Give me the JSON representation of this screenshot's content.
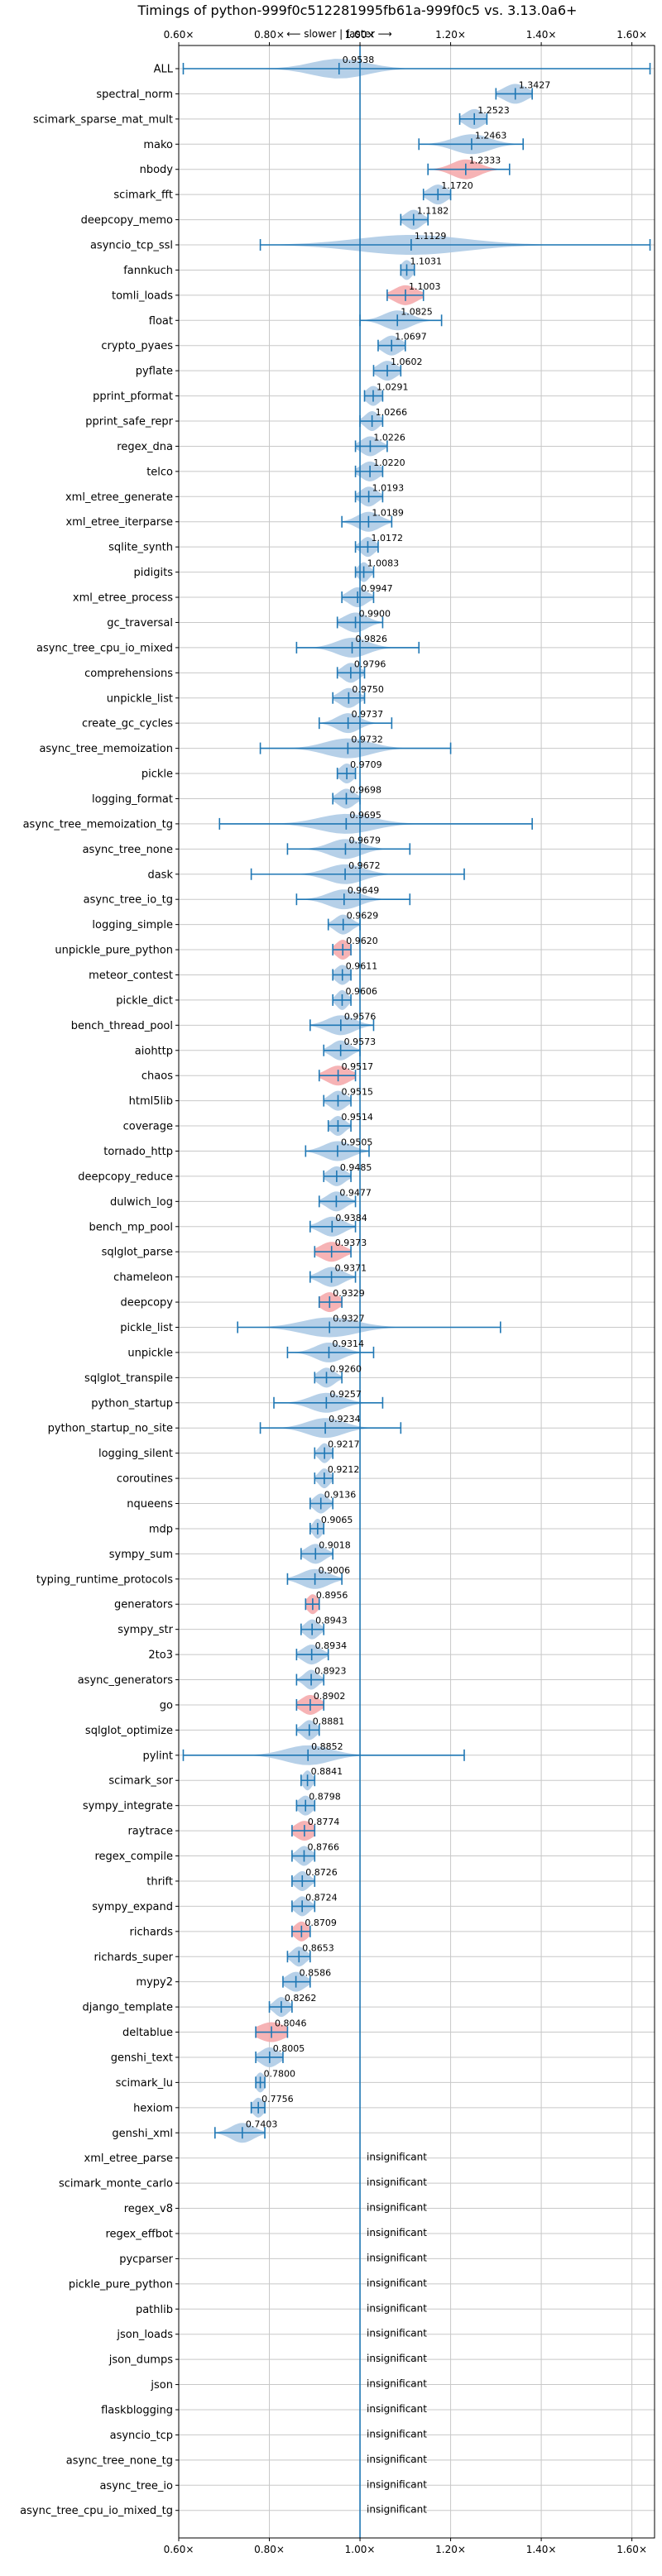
{
  "chart_data": {
    "type": "violin",
    "title": "Timings of python-999f0c512281995fb61a-999f0c5 vs. 3.13.0a6+",
    "direction_label": "⟵ slower | faster ⟶",
    "xlim": [
      0.6,
      1.65
    ],
    "x_ticks": [
      0.6,
      0.8,
      1.0,
      1.2,
      1.4,
      1.6
    ],
    "x_tick_labels": [
      "0.60×",
      "0.80×",
      "1.00×",
      "1.20×",
      "1.40×",
      "1.60×"
    ],
    "reference_line": 1.0,
    "grid": true,
    "insignificant_label": "insignificant",
    "benchmarks": [
      {
        "name": "ALL",
        "value": 0.9538,
        "label": "0.9538",
        "low": 0.61,
        "high": 1.64,
        "spread": 0.06,
        "regression": false
      },
      {
        "name": "spectral_norm",
        "value": 1.3427,
        "label": "1.3427",
        "low": 1.3,
        "high": 1.38,
        "spread": 0.025,
        "regression": false
      },
      {
        "name": "scimark_sparse_mat_mult",
        "value": 1.2523,
        "label": "1.2523",
        "low": 1.22,
        "high": 1.28,
        "spread": 0.02,
        "regression": false
      },
      {
        "name": "mako",
        "value": 1.2463,
        "label": "1.2463",
        "low": 1.13,
        "high": 1.36,
        "spread": 0.04,
        "regression": false
      },
      {
        "name": "nbody",
        "value": 1.2333,
        "label": "1.2333",
        "low": 1.15,
        "high": 1.33,
        "spread": 0.03,
        "regression": true
      },
      {
        "name": "scimark_fft",
        "value": 1.172,
        "label": "1.1720",
        "low": 1.14,
        "high": 1.2,
        "spread": 0.02,
        "regression": false
      },
      {
        "name": "deepcopy_memo",
        "value": 1.1182,
        "label": "1.1182",
        "low": 1.09,
        "high": 1.15,
        "spread": 0.018,
        "regression": false
      },
      {
        "name": "asyncio_tcp_ssl",
        "value": 1.1129,
        "label": "1.1129",
        "low": 0.78,
        "high": 1.64,
        "spread": 0.12,
        "regression": false
      },
      {
        "name": "fannkuch",
        "value": 1.1031,
        "label": "1.1031",
        "low": 1.09,
        "high": 1.12,
        "spread": 0.012,
        "regression": false
      },
      {
        "name": "tomli_loads",
        "value": 1.1003,
        "label": "1.1003",
        "low": 1.06,
        "high": 1.14,
        "spread": 0.025,
        "regression": true
      },
      {
        "name": "float",
        "value": 1.0825,
        "label": "1.0825",
        "low": 1.0,
        "high": 1.18,
        "spread": 0.03,
        "regression": false
      },
      {
        "name": "crypto_pyaes",
        "value": 1.0697,
        "label": "1.0697",
        "low": 1.04,
        "high": 1.1,
        "spread": 0.02,
        "regression": false
      },
      {
        "name": "pyflate",
        "value": 1.0602,
        "label": "1.0602",
        "low": 1.03,
        "high": 1.09,
        "spread": 0.02,
        "regression": false
      },
      {
        "name": "pprint_pformat",
        "value": 1.0291,
        "label": "1.0291",
        "low": 1.01,
        "high": 1.05,
        "spread": 0.015,
        "regression": false
      },
      {
        "name": "pprint_safe_repr",
        "value": 1.0266,
        "label": "1.0266",
        "low": 1.0,
        "high": 1.05,
        "spread": 0.015,
        "regression": false
      },
      {
        "name": "regex_dna",
        "value": 1.0226,
        "label": "1.0226",
        "low": 0.99,
        "high": 1.06,
        "spread": 0.02,
        "regression": false
      },
      {
        "name": "telco",
        "value": 1.022,
        "label": "1.0220",
        "low": 0.99,
        "high": 1.05,
        "spread": 0.02,
        "regression": false
      },
      {
        "name": "xml_etree_generate",
        "value": 1.0193,
        "label": "1.0193",
        "low": 0.99,
        "high": 1.05,
        "spread": 0.018,
        "regression": false
      },
      {
        "name": "xml_etree_iterparse",
        "value": 1.0189,
        "label": "1.0189",
        "low": 0.96,
        "high": 1.07,
        "spread": 0.025,
        "regression": false
      },
      {
        "name": "sqlite_synth",
        "value": 1.0172,
        "label": "1.0172",
        "low": 0.99,
        "high": 1.04,
        "spread": 0.015,
        "regression": false
      },
      {
        "name": "pidigits",
        "value": 1.0083,
        "label": "1.0083",
        "low": 0.99,
        "high": 1.03,
        "spread": 0.012,
        "regression": false
      },
      {
        "name": "xml_etree_process",
        "value": 0.9947,
        "label": "0.9947",
        "low": 0.96,
        "high": 1.03,
        "spread": 0.02,
        "regression": false
      },
      {
        "name": "gc_traversal",
        "value": 0.99,
        "label": "0.9900",
        "low": 0.95,
        "high": 1.05,
        "spread": 0.025,
        "regression": false
      },
      {
        "name": "async_tree_cpu_io_mixed",
        "value": 0.9826,
        "label": "0.9826",
        "low": 0.86,
        "high": 1.13,
        "spread": 0.035,
        "regression": false
      },
      {
        "name": "comprehensions",
        "value": 0.9796,
        "label": "0.9796",
        "low": 0.95,
        "high": 1.01,
        "spread": 0.018,
        "regression": false
      },
      {
        "name": "unpickle_list",
        "value": 0.975,
        "label": "0.9750",
        "low": 0.94,
        "high": 1.01,
        "spread": 0.02,
        "regression": false
      },
      {
        "name": "create_gc_cycles",
        "value": 0.9737,
        "label": "0.9737",
        "low": 0.91,
        "high": 1.07,
        "spread": 0.025,
        "regression": false
      },
      {
        "name": "async_tree_memoization",
        "value": 0.9732,
        "label": "0.9732",
        "low": 0.78,
        "high": 1.2,
        "spread": 0.05,
        "regression": false
      },
      {
        "name": "pickle",
        "value": 0.9709,
        "label": "0.9709",
        "low": 0.95,
        "high": 0.99,
        "spread": 0.015,
        "regression": false
      },
      {
        "name": "logging_format",
        "value": 0.9698,
        "label": "0.9698",
        "low": 0.94,
        "high": 1.0,
        "spread": 0.018,
        "regression": false
      },
      {
        "name": "async_tree_memoization_tg",
        "value": 0.9695,
        "label": "0.9695",
        "low": 0.69,
        "high": 1.38,
        "spread": 0.06,
        "regression": false
      },
      {
        "name": "async_tree_none",
        "value": 0.9679,
        "label": "0.9679",
        "low": 0.84,
        "high": 1.11,
        "spread": 0.035,
        "regression": false
      },
      {
        "name": "dask",
        "value": 0.9672,
        "label": "0.9672",
        "low": 0.76,
        "high": 1.23,
        "spread": 0.04,
        "regression": false
      },
      {
        "name": "async_tree_io_tg",
        "value": 0.9649,
        "label": "0.9649",
        "low": 0.86,
        "high": 1.11,
        "spread": 0.035,
        "regression": false
      },
      {
        "name": "logging_simple",
        "value": 0.9629,
        "label": "0.9629",
        "low": 0.93,
        "high": 1.0,
        "spread": 0.018,
        "regression": false
      },
      {
        "name": "unpickle_pure_python",
        "value": 0.962,
        "label": "0.9620",
        "low": 0.94,
        "high": 0.98,
        "spread": 0.015,
        "regression": true
      },
      {
        "name": "meteor_contest",
        "value": 0.9611,
        "label": "0.9611",
        "low": 0.94,
        "high": 0.98,
        "spread": 0.015,
        "regression": false
      },
      {
        "name": "pickle_dict",
        "value": 0.9606,
        "label": "0.9606",
        "low": 0.94,
        "high": 0.98,
        "spread": 0.012,
        "regression": false
      },
      {
        "name": "bench_thread_pool",
        "value": 0.9576,
        "label": "0.9576",
        "low": 0.89,
        "high": 1.03,
        "spread": 0.03,
        "regression": false
      },
      {
        "name": "aiohttp",
        "value": 0.9573,
        "label": "0.9573",
        "low": 0.92,
        "high": 1.0,
        "spread": 0.02,
        "regression": false
      },
      {
        "name": "chaos",
        "value": 0.9517,
        "label": "0.9517",
        "low": 0.91,
        "high": 0.99,
        "spread": 0.025,
        "regression": true
      },
      {
        "name": "html5lib",
        "value": 0.9515,
        "label": "0.9515",
        "low": 0.92,
        "high": 0.98,
        "spread": 0.018,
        "regression": false
      },
      {
        "name": "coverage",
        "value": 0.9514,
        "label": "0.9514",
        "low": 0.93,
        "high": 0.98,
        "spread": 0.015,
        "regression": false
      },
      {
        "name": "tornado_http",
        "value": 0.9505,
        "label": "0.9505",
        "low": 0.88,
        "high": 1.02,
        "spread": 0.03,
        "regression": false
      },
      {
        "name": "deepcopy_reduce",
        "value": 0.9485,
        "label": "0.9485",
        "low": 0.92,
        "high": 0.98,
        "spread": 0.018,
        "regression": false
      },
      {
        "name": "dulwich_log",
        "value": 0.9477,
        "label": "0.9477",
        "low": 0.91,
        "high": 0.99,
        "spread": 0.02,
        "regression": false
      },
      {
        "name": "bench_mp_pool",
        "value": 0.9384,
        "label": "0.9384",
        "low": 0.89,
        "high": 0.99,
        "spread": 0.025,
        "regression": false
      },
      {
        "name": "sqlglot_parse",
        "value": 0.9373,
        "label": "0.9373",
        "low": 0.9,
        "high": 0.98,
        "spread": 0.025,
        "regression": true
      },
      {
        "name": "chameleon",
        "value": 0.9371,
        "label": "0.9371",
        "low": 0.89,
        "high": 0.99,
        "spread": 0.025,
        "regression": false
      },
      {
        "name": "deepcopy",
        "value": 0.9329,
        "label": "0.9329",
        "low": 0.91,
        "high": 0.96,
        "spread": 0.02,
        "regression": true
      },
      {
        "name": "pickle_list",
        "value": 0.9327,
        "label": "0.9327",
        "low": 0.73,
        "high": 1.31,
        "spread": 0.06,
        "regression": false
      },
      {
        "name": "unpickle",
        "value": 0.9314,
        "label": "0.9314",
        "low": 0.84,
        "high": 1.03,
        "spread": 0.03,
        "regression": false
      },
      {
        "name": "sqlglot_transpile",
        "value": 0.926,
        "label": "0.9260",
        "low": 0.9,
        "high": 0.96,
        "spread": 0.018,
        "regression": false
      },
      {
        "name": "python_startup",
        "value": 0.9257,
        "label": "0.9257",
        "low": 0.81,
        "high": 1.05,
        "spread": 0.035,
        "regression": false
      },
      {
        "name": "python_startup_no_site",
        "value": 0.9234,
        "label": "0.9234",
        "low": 0.78,
        "high": 1.09,
        "spread": 0.04,
        "regression": false
      },
      {
        "name": "logging_silent",
        "value": 0.9217,
        "label": "0.9217",
        "low": 0.9,
        "high": 0.94,
        "spread": 0.012,
        "regression": false
      },
      {
        "name": "coroutines",
        "value": 0.9212,
        "label": "0.9212",
        "low": 0.9,
        "high": 0.94,
        "spread": 0.012,
        "regression": false
      },
      {
        "name": "nqueens",
        "value": 0.9136,
        "label": "0.9136",
        "low": 0.89,
        "high": 0.94,
        "spread": 0.015,
        "regression": false
      },
      {
        "name": "mdp",
        "value": 0.9065,
        "label": "0.9065",
        "low": 0.89,
        "high": 0.92,
        "spread": 0.01,
        "regression": false
      },
      {
        "name": "sympy_sum",
        "value": 0.9018,
        "label": "0.9018",
        "low": 0.87,
        "high": 0.94,
        "spread": 0.02,
        "regression": false
      },
      {
        "name": "typing_runtime_protocols",
        "value": 0.9006,
        "label": "0.9006",
        "low": 0.84,
        "high": 0.96,
        "spread": 0.03,
        "regression": false
      },
      {
        "name": "generators",
        "value": 0.8956,
        "label": "0.8956",
        "low": 0.88,
        "high": 0.91,
        "spread": 0.012,
        "regression": true
      },
      {
        "name": "sympy_str",
        "value": 0.8943,
        "label": "0.8943",
        "low": 0.87,
        "high": 0.92,
        "spread": 0.015,
        "regression": false
      },
      {
        "name": "2to3",
        "value": 0.8934,
        "label": "0.8934",
        "low": 0.86,
        "high": 0.93,
        "spread": 0.02,
        "regression": false
      },
      {
        "name": "async_generators",
        "value": 0.8923,
        "label": "0.8923",
        "low": 0.86,
        "high": 0.92,
        "spread": 0.015,
        "regression": false
      },
      {
        "name": "go",
        "value": 0.8902,
        "label": "0.8902",
        "low": 0.86,
        "high": 0.92,
        "spread": 0.02,
        "regression": true
      },
      {
        "name": "sqlglot_optimize",
        "value": 0.8881,
        "label": "0.8881",
        "low": 0.86,
        "high": 0.91,
        "spread": 0.015,
        "regression": false
      },
      {
        "name": "pylint",
        "value": 0.8852,
        "label": "0.8852",
        "low": 0.61,
        "high": 1.23,
        "spread": 0.05,
        "regression": false
      },
      {
        "name": "scimark_sor",
        "value": 0.8841,
        "label": "0.8841",
        "low": 0.87,
        "high": 0.9,
        "spread": 0.01,
        "regression": false
      },
      {
        "name": "sympy_integrate",
        "value": 0.8798,
        "label": "0.8798",
        "low": 0.86,
        "high": 0.9,
        "spread": 0.015,
        "regression": false
      },
      {
        "name": "raytrace",
        "value": 0.8774,
        "label": "0.8774",
        "low": 0.85,
        "high": 0.9,
        "spread": 0.02,
        "regression": true
      },
      {
        "name": "regex_compile",
        "value": 0.8766,
        "label": "0.8766",
        "low": 0.85,
        "high": 0.9,
        "spread": 0.015,
        "regression": false
      },
      {
        "name": "thrift",
        "value": 0.8726,
        "label": "0.8726",
        "low": 0.85,
        "high": 0.9,
        "spread": 0.015,
        "regression": false
      },
      {
        "name": "sympy_expand",
        "value": 0.8724,
        "label": "0.8724",
        "low": 0.85,
        "high": 0.9,
        "spread": 0.015,
        "regression": false
      },
      {
        "name": "richards",
        "value": 0.8709,
        "label": "0.8709",
        "low": 0.85,
        "high": 0.89,
        "spread": 0.015,
        "regression": true
      },
      {
        "name": "richards_super",
        "value": 0.8653,
        "label": "0.8653",
        "low": 0.84,
        "high": 0.89,
        "spread": 0.015,
        "regression": false
      },
      {
        "name": "mypy2",
        "value": 0.8586,
        "label": "0.8586",
        "low": 0.83,
        "high": 0.89,
        "spread": 0.02,
        "regression": false
      },
      {
        "name": "django_template",
        "value": 0.8262,
        "label": "0.8262",
        "low": 0.8,
        "high": 0.85,
        "spread": 0.015,
        "regression": false
      },
      {
        "name": "deltablue",
        "value": 0.8046,
        "label": "0.8046",
        "low": 0.77,
        "high": 0.84,
        "spread": 0.03,
        "regression": true
      },
      {
        "name": "genshi_text",
        "value": 0.8005,
        "label": "0.8005",
        "low": 0.77,
        "high": 0.83,
        "spread": 0.02,
        "regression": false
      },
      {
        "name": "scimark_lu",
        "value": 0.78,
        "label": "0.7800",
        "low": 0.77,
        "high": 0.79,
        "spread": 0.01,
        "regression": false
      },
      {
        "name": "hexiom",
        "value": 0.7756,
        "label": "0.7756",
        "low": 0.76,
        "high": 0.79,
        "spread": 0.012,
        "regression": false
      },
      {
        "name": "genshi_xml",
        "value": 0.7403,
        "label": "0.7403",
        "low": 0.68,
        "high": 0.79,
        "spread": 0.025,
        "regression": false
      },
      {
        "name": "xml_etree_parse",
        "value": null,
        "label": "insignificant"
      },
      {
        "name": "scimark_monte_carlo",
        "value": null,
        "label": "insignificant"
      },
      {
        "name": "regex_v8",
        "value": null,
        "label": "insignificant"
      },
      {
        "name": "regex_effbot",
        "value": null,
        "label": "insignificant"
      },
      {
        "name": "pycparser",
        "value": null,
        "label": "insignificant"
      },
      {
        "name": "pickle_pure_python",
        "value": null,
        "label": "insignificant"
      },
      {
        "name": "pathlib",
        "value": null,
        "label": "insignificant"
      },
      {
        "name": "json_loads",
        "value": null,
        "label": "insignificant"
      },
      {
        "name": "json_dumps",
        "value": null,
        "label": "insignificant"
      },
      {
        "name": "json",
        "value": null,
        "label": "insignificant"
      },
      {
        "name": "flaskblogging",
        "value": null,
        "label": "insignificant"
      },
      {
        "name": "asyncio_tcp",
        "value": null,
        "label": "insignificant"
      },
      {
        "name": "async_tree_none_tg",
        "value": null,
        "label": "insignificant"
      },
      {
        "name": "async_tree_io",
        "value": null,
        "label": "insignificant"
      },
      {
        "name": "async_tree_cpu_io_mixed_tg",
        "value": null,
        "label": "insignificant"
      }
    ],
    "colors": {
      "violin": "#a9c8e4",
      "regression": "#f4a6a8",
      "line": "#1f77b4",
      "grid": "#c8c8c8",
      "text": "#000000"
    }
  }
}
